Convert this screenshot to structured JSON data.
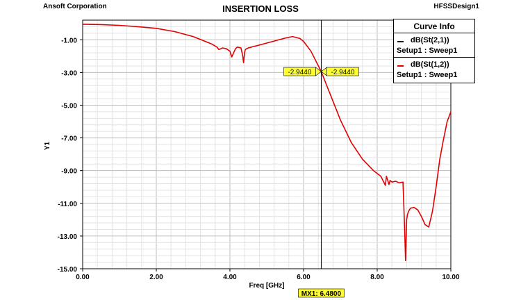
{
  "header": {
    "company": "Ansoft Corporation",
    "title": "INSERTION LOSS",
    "design": "HFSSDesign1"
  },
  "legend": {
    "title": "Curve Info",
    "entries": [
      {
        "name": "dB(St(2,1))",
        "setup": "Setup1 : Sweep1",
        "color": "#1a1a1a"
      },
      {
        "name": "dB(St(1,2))",
        "setup": "Setup1 : Sweep1",
        "color": "#e00000"
      }
    ]
  },
  "marker": {
    "label": "MX1: 6.4800",
    "x": 6.48,
    "value_left": "-2.9440",
    "value_right": "-2.9440",
    "y": -2.944
  },
  "chart_data": {
    "type": "line",
    "title": "INSERTION LOSS",
    "xlabel": "Freq [GHz]",
    "ylabel": "Y1",
    "xlim": [
      0,
      10
    ],
    "ylim": [
      -15,
      0.2
    ],
    "x_ticks": [
      "0.00",
      "2.00",
      "4.00",
      "6.00",
      "8.00",
      "10.00"
    ],
    "y_ticks": [
      "-1.00",
      "-3.00",
      "-5.00",
      "-7.00",
      "-9.00",
      "-11.00",
      "-13.00",
      "-15.00"
    ],
    "grid": true,
    "legend_position": "top-right",
    "series": [
      {
        "name": "dB(St(1,2))",
        "color": "#e00000",
        "x": [
          0.0,
          0.5,
          1.0,
          1.5,
          2.0,
          2.5,
          3.0,
          3.5,
          3.65,
          3.7,
          3.75,
          3.8,
          3.9,
          4.0,
          4.05,
          4.1,
          4.15,
          4.2,
          4.3,
          4.35,
          4.37,
          4.4,
          4.42,
          4.45,
          4.5,
          5.0,
          5.5,
          5.7,
          5.9,
          6.0,
          6.2,
          6.48,
          6.7,
          7.0,
          7.3,
          7.6,
          7.9,
          8.1,
          8.2,
          8.22,
          8.25,
          8.3,
          8.32,
          8.35,
          8.4,
          8.5,
          8.6,
          8.7,
          8.72,
          8.75,
          8.77,
          8.8,
          8.82,
          8.85,
          8.9,
          9.0,
          9.1,
          9.2,
          9.3,
          9.4,
          9.5,
          9.6,
          9.7,
          9.8,
          9.9,
          10.0
        ],
        "y": [
          -0.05,
          -0.07,
          -0.12,
          -0.2,
          -0.3,
          -0.5,
          -0.8,
          -1.25,
          -1.45,
          -1.6,
          -1.55,
          -1.5,
          -1.55,
          -1.7,
          -2.05,
          -1.8,
          -1.55,
          -1.45,
          -1.5,
          -2.0,
          -2.4,
          -1.75,
          -1.6,
          -1.55,
          -1.5,
          -1.2,
          -0.9,
          -0.8,
          -0.92,
          -1.1,
          -1.7,
          -2.944,
          -4.2,
          -5.9,
          -7.3,
          -8.3,
          -9.0,
          -9.35,
          -9.8,
          -9.9,
          -9.35,
          -9.7,
          -9.85,
          -9.6,
          -9.7,
          -9.65,
          -9.75,
          -9.7,
          -11.0,
          -13.0,
          -14.5,
          -12.0,
          -11.7,
          -11.5,
          -11.3,
          -11.25,
          -11.4,
          -11.8,
          -12.3,
          -12.45,
          -11.5,
          -10.0,
          -8.3,
          -7.1,
          -6.0,
          -5.4
        ]
      }
    ]
  }
}
